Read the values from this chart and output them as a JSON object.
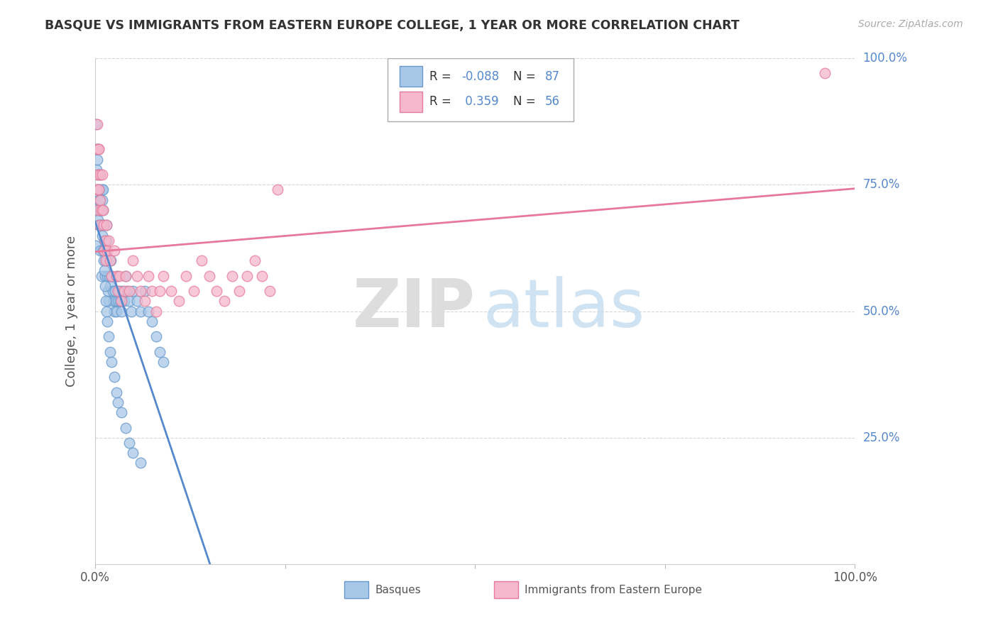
{
  "title": "BASQUE VS IMMIGRANTS FROM EASTERN EUROPE COLLEGE, 1 YEAR OR MORE CORRELATION CHART",
  "source": "Source: ZipAtlas.com",
  "ylabel": "College, 1 year or more",
  "legend_label1": "Basques",
  "legend_label2": "Immigrants from Eastern Europe",
  "r1": -0.088,
  "n1": 87,
  "r2": 0.359,
  "n2": 56,
  "color_blue": "#a8c8e8",
  "color_pink": "#f5b8cc",
  "edge_blue": "#6699cc",
  "edge_pink": "#e87a9a",
  "line_blue_solid": "#5588cc",
  "line_blue_dash": "#88aacc",
  "line_pink": "#e8789a",
  "text_blue": "#5588cc",
  "background": "#ffffff",
  "grid_color": "#cccccc",
  "right_label_color": "#5588cc",
  "title_color": "#333333",
  "source_color": "#aaaaaa",
  "ylabel_color": "#555555",
  "blue_x": [
    0.001,
    0.002,
    0.003,
    0.003,
    0.004,
    0.004,
    0.005,
    0.005,
    0.006,
    0.006,
    0.007,
    0.007,
    0.008,
    0.008,
    0.009,
    0.009,
    0.01,
    0.01,
    0.011,
    0.011,
    0.012,
    0.013,
    0.013,
    0.014,
    0.015,
    0.015,
    0.016,
    0.016,
    0.017,
    0.018,
    0.019,
    0.02,
    0.021,
    0.022,
    0.023,
    0.024,
    0.025,
    0.026,
    0.027,
    0.028,
    0.029,
    0.03,
    0.032,
    0.033,
    0.035,
    0.036,
    0.038,
    0.04,
    0.042,
    0.045,
    0.048,
    0.05,
    0.055,
    0.06,
    0.065,
    0.07,
    0.075,
    0.08,
    0.085,
    0.09,
    0.001,
    0.002,
    0.003,
    0.004,
    0.005,
    0.006,
    0.007,
    0.008,
    0.009,
    0.01,
    0.011,
    0.012,
    0.013,
    0.014,
    0.015,
    0.016,
    0.018,
    0.02,
    0.022,
    0.025,
    0.028,
    0.03,
    0.035,
    0.04,
    0.045,
    0.05,
    0.06
  ],
  "blue_y": [
    0.63,
    0.78,
    0.7,
    0.74,
    0.82,
    0.68,
    0.67,
    0.72,
    0.7,
    0.74,
    0.77,
    0.62,
    0.57,
    0.67,
    0.72,
    0.74,
    0.74,
    0.7,
    0.67,
    0.62,
    0.64,
    0.6,
    0.57,
    0.62,
    0.67,
    0.64,
    0.6,
    0.57,
    0.54,
    0.52,
    0.57,
    0.55,
    0.6,
    0.57,
    0.54,
    0.52,
    0.5,
    0.54,
    0.52,
    0.5,
    0.57,
    0.52,
    0.54,
    0.52,
    0.5,
    0.54,
    0.52,
    0.57,
    0.54,
    0.52,
    0.5,
    0.54,
    0.52,
    0.5,
    0.54,
    0.5,
    0.48,
    0.45,
    0.42,
    0.4,
    0.87,
    0.82,
    0.8,
    0.77,
    0.74,
    0.72,
    0.7,
    0.67,
    0.65,
    0.62,
    0.6,
    0.58,
    0.55,
    0.52,
    0.5,
    0.48,
    0.45,
    0.42,
    0.4,
    0.37,
    0.34,
    0.32,
    0.3,
    0.27,
    0.24,
    0.22,
    0.2
  ],
  "pink_x": [
    0.002,
    0.003,
    0.003,
    0.004,
    0.005,
    0.005,
    0.006,
    0.007,
    0.007,
    0.008,
    0.009,
    0.01,
    0.011,
    0.012,
    0.013,
    0.014,
    0.015,
    0.016,
    0.018,
    0.02,
    0.022,
    0.025,
    0.028,
    0.03,
    0.032,
    0.035,
    0.038,
    0.04,
    0.045,
    0.05,
    0.055,
    0.06,
    0.065,
    0.07,
    0.075,
    0.08,
    0.085,
    0.09,
    0.1,
    0.11,
    0.12,
    0.13,
    0.14,
    0.15,
    0.16,
    0.17,
    0.18,
    0.19,
    0.2,
    0.21,
    0.22,
    0.23,
    0.24,
    0.96,
    0.003,
    0.005
  ],
  "pink_y": [
    0.74,
    0.77,
    0.82,
    0.7,
    0.74,
    0.82,
    0.67,
    0.72,
    0.77,
    0.7,
    0.77,
    0.7,
    0.67,
    0.62,
    0.64,
    0.6,
    0.67,
    0.62,
    0.64,
    0.6,
    0.57,
    0.62,
    0.57,
    0.54,
    0.57,
    0.52,
    0.54,
    0.57,
    0.54,
    0.6,
    0.57,
    0.54,
    0.52,
    0.57,
    0.54,
    0.5,
    0.54,
    0.57,
    0.54,
    0.52,
    0.57,
    0.54,
    0.6,
    0.57,
    0.54,
    0.52,
    0.57,
    0.54,
    0.57,
    0.6,
    0.57,
    0.54,
    0.74,
    0.97,
    0.87,
    0.82
  ]
}
